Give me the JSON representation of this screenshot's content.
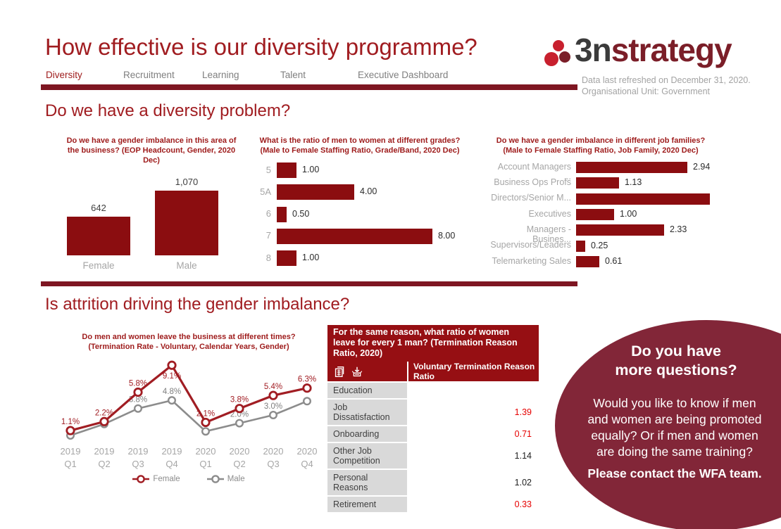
{
  "colors": {
    "bar_maroon": "#8B0D10",
    "divider_maroon": "#7E1622",
    "banner_maroon": "#960F13",
    "heading_red": "#A01C20",
    "bubble_maroon": "#822638",
    "female_line": "#A11D23",
    "male_line": "#8C8C8C",
    "gray_label": "#A6A6A6",
    "value_red": "#E60000"
  },
  "header": {
    "title": "How effective is our diversity programme?",
    "logo": {
      "text_3n": "3n",
      "text_strategy": "strategy",
      "icon": "three-dots-logo"
    },
    "nav": [
      {
        "label": "Diversity",
        "active": true
      },
      {
        "label": "Recruitment",
        "active": false
      },
      {
        "label": "Learning",
        "active": false
      },
      {
        "label": "Talent",
        "active": false
      },
      {
        "label": "Executive Dashboard",
        "active": false
      }
    ],
    "refresh_line1": "Data last refreshed on December 31, 2020.",
    "refresh_line2": "Organisational Unit: Government"
  },
  "sections": {
    "s1": "Do we have a diversity problem?",
    "s2": "Is attrition driving the gender imbalance?"
  },
  "chart_data": [
    {
      "type": "bar",
      "orientation": "vertical",
      "title": "Do we have a gender imbalance in this area of the business? (EOP Headcount, Gender, 2020 Dec)",
      "categories": [
        "Female",
        "Male"
      ],
      "values": [
        642,
        1070
      ],
      "value_labels": [
        "642",
        "1,070"
      ],
      "ylim": [
        0,
        1070
      ],
      "grid": false
    },
    {
      "type": "bar",
      "orientation": "horizontal",
      "title": "What is the ratio of men to women at different grades? (Male to Female Staffing Ratio, Grade/Band, 2020 Dec)",
      "categories": [
        "5",
        "5A",
        "6",
        "7",
        "8"
      ],
      "values": [
        1.0,
        4.0,
        0.5,
        8.0,
        1.0
      ],
      "value_labels": [
        "1.00",
        "4.00",
        "0.50",
        "8.00",
        "1.00"
      ],
      "xlim": [
        0,
        8
      ],
      "grid": false
    },
    {
      "type": "bar",
      "orientation": "horizontal",
      "title": "Do we have a gender imbalance in different job families? (Male to Female Staffing Ratio, Job Family, 2020 Dec)",
      "categories": [
        "Account Managers ...",
        "Business Ops Profs",
        "Directors/Senior M...",
        "Executives",
        "Managers -Busines...",
        "Supervisors/Leaders",
        "Telemarketing Sales"
      ],
      "values": [
        2.94,
        1.13,
        3.54,
        1.0,
        2.33,
        0.25,
        0.61
      ],
      "value_labels": [
        "2.94",
        "1.13",
        "",
        "1.00",
        "2.33",
        "0.25",
        "0.61"
      ],
      "xlim": [
        0,
        3.54
      ],
      "note": "third bar is clipped at the plot edge with no visible data label; 3.54 estimated from bar length",
      "grid": false
    },
    {
      "type": "line",
      "title": "Do men and women leave the business at different times? (Termination Rate - Voluntary, Calendar Years, Gender)",
      "x": [
        {
          "l1": "2019",
          "l2": "Q1"
        },
        {
          "l1": "2019",
          "l2": "Q2"
        },
        {
          "l1": "2019",
          "l2": "Q3"
        },
        {
          "l1": "2019",
          "l2": "Q4"
        },
        {
          "l1": "2020",
          "l2": "Q1"
        },
        {
          "l1": "2020",
          "l2": "Q2"
        },
        {
          "l1": "2020",
          "l2": "Q3"
        },
        {
          "l1": "2020",
          "l2": "Q4"
        }
      ],
      "series": [
        {
          "name": "Male",
          "color": "#8C8C8C",
          "values": [
            0.5,
            1.9,
            3.8,
            4.8,
            1.0,
            2.0,
            3.0,
            4.7
          ],
          "labels": [
            "",
            "",
            "3.8%",
            "4.8%",
            "",
            "2.0%",
            "3.0%",
            ""
          ]
        },
        {
          "name": "Female",
          "color": "#A11D23",
          "values": [
            1.1,
            2.2,
            5.8,
            9.1,
            2.1,
            3.8,
            5.4,
            6.3
          ],
          "labels": [
            "1.1%",
            "2.2%",
            "5.8%",
            "9.1%",
            "2.1%",
            "3.8%",
            "5.4%",
            "6.3%"
          ]
        }
      ],
      "ylim": [
        0,
        10
      ],
      "legend_position": "bottom",
      "legend": [
        "Female",
        "Male"
      ],
      "grid": false
    }
  ],
  "table": {
    "banner": "For the same reason, what ratio of women leave for every 1 man? (Termination Reason Ratio, 2020)",
    "icons": [
      "copy-table-icon",
      "export-data-icon"
    ],
    "column_header": "Voluntary Termination Reason Ratio",
    "rows": [
      {
        "label": "Education",
        "value": "",
        "color": "black"
      },
      {
        "label": "Job Dissatisfaction",
        "value": "1.39",
        "color": "red"
      },
      {
        "label": "Onboarding",
        "value": "0.71",
        "color": "red"
      },
      {
        "label": "Other Job Competition",
        "value": "1.14",
        "color": "black"
      },
      {
        "label": "Personal Reasons",
        "value": "1.02",
        "color": "black"
      },
      {
        "label": "Retirement",
        "value": "0.33",
        "color": "red"
      }
    ]
  },
  "bubble": {
    "heading_lines": [
      "Do you have",
      "more questions?"
    ],
    "body_lines": [
      "Would you like to know if men",
      "and women are being promoted",
      "equally? Or if men and women",
      "are doing the same training?"
    ],
    "footer": "Please contact the WFA team."
  }
}
